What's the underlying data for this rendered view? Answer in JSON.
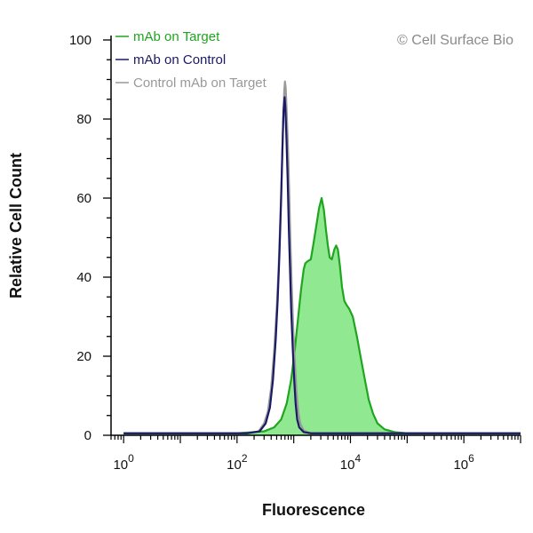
{
  "chart_data": {
    "type": "area",
    "xlabel": "Fluorescence",
    "ylabel": "Relative Cell Count",
    "x_scale": "log10",
    "xlim": [
      0.6,
      10000000
    ],
    "ylim": [
      0,
      100
    ],
    "x_ticks": [
      {
        "base": "10",
        "exp": "0",
        "value": 1
      },
      {
        "base": "10",
        "exp": "2",
        "value": 100
      },
      {
        "base": "10",
        "exp": "4",
        "value": 10000
      },
      {
        "base": "10",
        "exp": "6",
        "value": 1000000
      }
    ],
    "y_ticks": [
      "0",
      "20",
      "40",
      "60",
      "80",
      "100"
    ],
    "watermark": "© Cell Surface Bio",
    "legend_position": "top-left",
    "series": [
      {
        "name": "mAb on Target",
        "color": "#1fa51f",
        "fill": "#90e890",
        "filled": true,
        "points": [
          [
            1,
            0.5
          ],
          [
            100,
            0.5
          ],
          [
            300,
            1
          ],
          [
            450,
            2
          ],
          [
            600,
            4
          ],
          [
            750,
            8
          ],
          [
            900,
            14
          ],
          [
            1050,
            22
          ],
          [
            1200,
            30
          ],
          [
            1350,
            37
          ],
          [
            1500,
            42
          ],
          [
            1600,
            43.5
          ],
          [
            1750,
            44
          ],
          [
            2000,
            44.5
          ],
          [
            2200,
            48
          ],
          [
            2500,
            53
          ],
          [
            2800,
            57.5
          ],
          [
            3100,
            60
          ],
          [
            3400,
            57
          ],
          [
            3700,
            52
          ],
          [
            4000,
            48
          ],
          [
            4300,
            45
          ],
          [
            4700,
            44.5
          ],
          [
            5200,
            47
          ],
          [
            5600,
            48
          ],
          [
            6000,
            47
          ],
          [
            6500,
            43
          ],
          [
            7100,
            37.5
          ],
          [
            7800,
            34
          ],
          [
            8500,
            33
          ],
          [
            9500,
            32
          ],
          [
            11000,
            30
          ],
          [
            13000,
            25
          ],
          [
            15500,
            19
          ],
          [
            18000,
            14
          ],
          [
            21000,
            9
          ],
          [
            25000,
            5.5
          ],
          [
            30000,
            3
          ],
          [
            40000,
            1.5
          ],
          [
            60000,
            0.8
          ],
          [
            100000,
            0.5
          ],
          [
            10000000,
            0.5
          ]
        ]
      },
      {
        "name": "mAb on Control",
        "color": "#1a1a66",
        "filled": false,
        "points": [
          [
            1,
            0.5
          ],
          [
            150,
            0.5
          ],
          [
            250,
            1
          ],
          [
            320,
            3
          ],
          [
            380,
            7
          ],
          [
            430,
            14
          ],
          [
            480,
            24
          ],
          [
            520,
            34
          ],
          [
            560,
            46
          ],
          [
            600,
            60
          ],
          [
            630,
            72
          ],
          [
            660,
            82
          ],
          [
            690,
            85.5
          ],
          [
            710,
            83
          ],
          [
            740,
            76
          ],
          [
            780,
            65
          ],
          [
            820,
            52
          ],
          [
            860,
            42
          ],
          [
            900,
            32
          ],
          [
            960,
            22
          ],
          [
            1020,
            14
          ],
          [
            1080,
            8
          ],
          [
            1150,
            4
          ],
          [
            1250,
            2
          ],
          [
            1500,
            0.8
          ],
          [
            2000,
            0.5
          ],
          [
            10000000,
            0.5
          ]
        ]
      },
      {
        "name": "Control mAb on Target",
        "color": "#999999",
        "filled": false,
        "points": [
          [
            1,
            0.5
          ],
          [
            150,
            0.5
          ],
          [
            240,
            1
          ],
          [
            300,
            3
          ],
          [
            350,
            6
          ],
          [
            400,
            12
          ],
          [
            450,
            21
          ],
          [
            500,
            32
          ],
          [
            540,
            42
          ],
          [
            580,
            55
          ],
          [
            620,
            68
          ],
          [
            650,
            79
          ],
          [
            680,
            87
          ],
          [
            700,
            89.5
          ],
          [
            720,
            88
          ],
          [
            750,
            82
          ],
          [
            790,
            73
          ],
          [
            830,
            62
          ],
          [
            870,
            50
          ],
          [
            920,
            38
          ],
          [
            980,
            27
          ],
          [
            1050,
            18
          ],
          [
            1120,
            11
          ],
          [
            1200,
            6
          ],
          [
            1300,
            3
          ],
          [
            1500,
            1.2
          ],
          [
            2000,
            0.5
          ],
          [
            10000000,
            0.5
          ]
        ]
      }
    ]
  }
}
